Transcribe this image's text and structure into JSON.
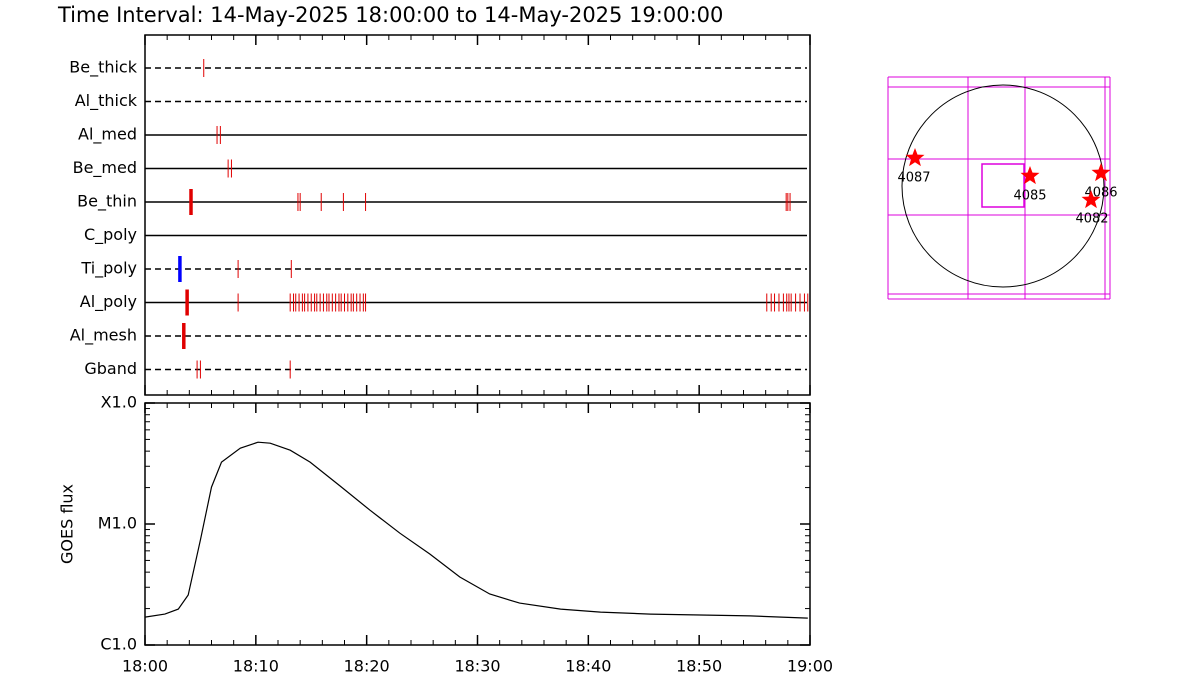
{
  "title": "Time Interval: 14-May-2025 18:00:00 to 14-May-2025 19:00:00",
  "chart_data": [
    {
      "type": "timeline",
      "color": "#e00000",
      "xlim": [
        0,
        60
      ],
      "xticks": [
        0,
        10,
        20,
        30,
        40,
        50,
        60
      ],
      "rows": [
        {
          "name": "Be_thick",
          "line_style": "dashed",
          "values": [
            5.3
          ],
          "bold_values": []
        },
        {
          "name": "Al_thick",
          "line_style": "dashed",
          "values": [],
          "bold_values": []
        },
        {
          "name": "Al_med",
          "line_style": "solid",
          "values": [
            6.5,
            6.8
          ],
          "bold_values": []
        },
        {
          "name": "Be_med",
          "line_style": "solid",
          "values": [
            7.5,
            7.8
          ],
          "bold_values": []
        },
        {
          "name": "Be_thin",
          "line_style": "solid",
          "values": [
            13.8,
            14.0,
            15.9,
            17.9,
            19.9,
            57.85,
            58.0,
            58.2
          ],
          "bold_values": [
            4.15
          ]
        },
        {
          "name": "C_poly",
          "line_style": "solid",
          "values": [],
          "bold_values": []
        },
        {
          "name": "Ti_poly",
          "line_style": "dashed",
          "values": [
            8.4,
            13.2
          ],
          "bold_values": [
            3.15
          ],
          "bold_color": "#0000ff"
        },
        {
          "name": "Al_poly",
          "line_style": "solid",
          "values": [
            8.4,
            13.1,
            13.4,
            13.6,
            13.9,
            14.2,
            14.4,
            14.7,
            15.0,
            15.3,
            15.5,
            15.8,
            16.1,
            16.4,
            16.6,
            16.9,
            17.2,
            17.5,
            17.7,
            18.0,
            18.3,
            18.6,
            18.8,
            19.1,
            19.4,
            19.7,
            19.9,
            56.1,
            56.5,
            56.8,
            57.2,
            57.6,
            57.9,
            58.1,
            58.3,
            58.7,
            59.1,
            59.5,
            59.8
          ],
          "bold_values": [
            3.8
          ]
        },
        {
          "name": "Al_mesh",
          "line_style": "dashed",
          "values": [],
          "bold_values": [
            3.5
          ]
        },
        {
          "name": "Gband",
          "line_style": "dashed",
          "values": [
            4.7,
            5.0,
            13.1
          ],
          "bold_values": []
        }
      ]
    },
    {
      "type": "line",
      "y_label": "GOES flux",
      "color": "#000000",
      "log_y": true,
      "x": [
        0,
        1.8,
        3.0,
        3.9,
        5.0,
        6.0,
        6.9,
        8.6,
        10.2,
        11.3,
        13.1,
        14.9,
        17.6,
        20.3,
        23.0,
        25.7,
        28.4,
        31.1,
        33.8,
        37.5,
        41.1,
        45.6,
        50.1,
        54.6,
        59.8
      ],
      "values": [
        1.7e-06,
        1.8e-06,
        1.98e-06,
        2.59e-06,
        7.37e-06,
        2.02e-05,
        3.25e-05,
        4.23e-05,
        4.74e-05,
        4.65e-05,
        4.07e-05,
        3.25e-05,
        2.06e-05,
        1.3e-05,
        8.4e-06,
        5.65e-06,
        3.65e-06,
        2.64e-06,
        2.22e-06,
        1.98e-06,
        1.87e-06,
        1.8e-06,
        1.77e-06,
        1.74e-06,
        1.67e-06
      ],
      "xlim": [
        0,
        60
      ],
      "xticks": [
        {
          "value": 0,
          "label": "18:00"
        },
        {
          "value": 10,
          "label": "18:10"
        },
        {
          "value": 20,
          "label": "18:20"
        },
        {
          "value": 30,
          "label": "18:30"
        },
        {
          "value": 40,
          "label": "18:40"
        },
        {
          "value": 50,
          "label": "18:50"
        },
        {
          "value": 60,
          "label": "19:00"
        }
      ],
      "ylim": [
        1e-06,
        0.0001
      ],
      "yticks": [
        {
          "value": 1e-06,
          "label": "C1.0"
        },
        {
          "value": 1e-05,
          "label": "M1.0"
        },
        {
          "value": 0.0001,
          "label": "X1.0"
        }
      ]
    },
    {
      "type": "map",
      "grid_color": "#dd00dd",
      "marker_color": "#ff0000",
      "regions": [
        {
          "label": "4087"
        },
        {
          "label": "4085"
        },
        {
          "label": "4086"
        },
        {
          "label": "4082"
        }
      ]
    }
  ]
}
